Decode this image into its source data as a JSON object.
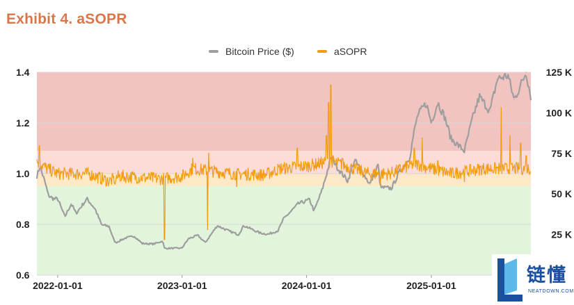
{
  "header": {
    "title": "Exhibit 4. aSOPR"
  },
  "colors": {
    "price": "#9e9e9e",
    "asopr": "#f39c12",
    "zone_high": "#f2c4c1",
    "zone_mid_upper": "#fbdcd6",
    "zone_mid_lower": "#fde9c8",
    "zone_low": "#e2f5dc",
    "title": "#d9774a"
  },
  "watermark": {
    "chinese_text": "链懂",
    "english_text": "NEATDOWN.COM"
  },
  "chart_data": {
    "type": "line",
    "title": "Exhibit 4. aSOPR",
    "xlabel": "",
    "ylabel": "",
    "legend_position": "top-center",
    "grid": true,
    "x_axis": {
      "type": "date",
      "range": [
        "2021-11-01",
        "2025-10-20"
      ],
      "ticks": [
        "2022-01-01",
        "2023-01-01",
        "2024-01-01",
        "2025-01-01"
      ]
    },
    "y_left": {
      "range": [
        0.6,
        1.4
      ],
      "ticks": [
        "0.6",
        "0.8",
        "1.0",
        "1.2",
        "1.4"
      ]
    },
    "y_right": {
      "range": [
        0,
        125000
      ],
      "ticks": [
        "25 K",
        "50 K",
        "75 K",
        "100 K",
        "125 K"
      ],
      "tick_values": [
        25000,
        50000,
        75000,
        100000,
        125000
      ]
    },
    "bands": [
      {
        "from": 1.09,
        "to": 1.4,
        "color_key": "zone_high"
      },
      {
        "from": 1.0,
        "to": 1.09,
        "color_key": "zone_mid_upper"
      },
      {
        "from": 0.95,
        "to": 1.0,
        "color_key": "zone_mid_lower"
      },
      {
        "from": 0.6,
        "to": 0.95,
        "color_key": "zone_low"
      }
    ],
    "series": [
      {
        "name": "Bitcoin Price ($)",
        "axis": "right",
        "color_key": "price",
        "points": [
          [
            "2021-11-01",
            61000
          ],
          [
            "2021-11-10",
            67000
          ],
          [
            "2021-11-25",
            57000
          ],
          [
            "2021-12-05",
            49000
          ],
          [
            "2021-12-20",
            47000
          ],
          [
            "2022-01-01",
            47000
          ],
          [
            "2022-01-22",
            36000
          ],
          [
            "2022-02-10",
            44000
          ],
          [
            "2022-02-24",
            38000
          ],
          [
            "2022-03-28",
            47000
          ],
          [
            "2022-04-20",
            41000
          ],
          [
            "2022-05-10",
            31000
          ],
          [
            "2022-06-01",
            30000
          ],
          [
            "2022-06-14",
            22000
          ],
          [
            "2022-06-20",
            20000
          ],
          [
            "2022-07-20",
            23000
          ],
          [
            "2022-08-14",
            24000
          ],
          [
            "2022-09-06",
            19500
          ],
          [
            "2022-10-10",
            19200
          ],
          [
            "2022-11-05",
            21000
          ],
          [
            "2022-11-10",
            16500
          ],
          [
            "2022-12-31",
            16600
          ],
          [
            "2023-01-20",
            22500
          ],
          [
            "2023-02-16",
            24500
          ],
          [
            "2023-03-10",
            20000
          ],
          [
            "2023-04-14",
            30500
          ],
          [
            "2023-05-20",
            27000
          ],
          [
            "2023-06-15",
            25000
          ],
          [
            "2023-07-01",
            30500
          ],
          [
            "2023-08-17",
            26000
          ],
          [
            "2023-09-11",
            25200
          ],
          [
            "2023-10-10",
            27500
          ],
          [
            "2023-10-25",
            34500
          ],
          [
            "2023-12-08",
            44000
          ],
          [
            "2024-01-10",
            46500
          ],
          [
            "2024-01-23",
            39500
          ],
          [
            "2024-02-15",
            52000
          ],
          [
            "2024-03-14",
            73000
          ],
          [
            "2024-04-01",
            66000
          ],
          [
            "2024-05-01",
            58000
          ],
          [
            "2024-05-21",
            71000
          ],
          [
            "2024-07-05",
            56000
          ],
          [
            "2024-07-29",
            68000
          ],
          [
            "2024-08-05",
            54000
          ],
          [
            "2024-09-06",
            53500
          ],
          [
            "2024-10-01",
            64000
          ],
          [
            "2024-10-29",
            72000
          ],
          [
            "2024-11-12",
            89000
          ],
          [
            "2024-11-22",
            98500
          ],
          [
            "2024-12-17",
            106000
          ],
          [
            "2025-01-01",
            94000
          ],
          [
            "2025-01-20",
            106500
          ],
          [
            "2025-02-10",
            97000
          ],
          [
            "2025-02-28",
            84000
          ],
          [
            "2025-04-08",
            76500
          ],
          [
            "2025-05-01",
            96000
          ],
          [
            "2025-05-22",
            110000
          ],
          [
            "2025-06-22",
            101000
          ],
          [
            "2025-07-14",
            121000
          ],
          [
            "2025-08-14",
            123000
          ],
          [
            "2025-09-01",
            108000
          ],
          [
            "2025-09-20",
            117000
          ],
          [
            "2025-10-06",
            125000
          ],
          [
            "2025-10-20",
            110000
          ]
        ]
      },
      {
        "name": "aSOPR",
        "axis": "left",
        "color_key": "asopr",
        "baseline_segments": [
          [
            "2021-11-01",
            1.05
          ],
          [
            "2021-12-01",
            1.02
          ],
          [
            "2022-01-01",
            1.0
          ],
          [
            "2022-04-01",
            1.0
          ],
          [
            "2022-06-01",
            0.97
          ],
          [
            "2022-07-01",
            0.99
          ],
          [
            "2022-11-01",
            0.98
          ],
          [
            "2023-01-01",
            0.99
          ],
          [
            "2023-02-01",
            1.02
          ],
          [
            "2023-06-01",
            1.0
          ],
          [
            "2023-09-01",
            0.995
          ],
          [
            "2023-10-15",
            1.02
          ],
          [
            "2024-01-01",
            1.03
          ],
          [
            "2024-03-15",
            1.05
          ],
          [
            "2024-07-01",
            1.0
          ],
          [
            "2024-09-01",
            1.0
          ],
          [
            "2024-11-15",
            1.04
          ],
          [
            "2025-01-01",
            1.02
          ],
          [
            "2025-03-01",
            1.0
          ],
          [
            "2025-06-01",
            1.02
          ],
          [
            "2025-10-20",
            1.02
          ]
        ],
        "spikes": [
          [
            "2021-11-08",
            1.11
          ],
          [
            "2022-06-18",
            0.96
          ],
          [
            "2022-07-18",
            0.98
          ],
          [
            "2022-11-10",
            0.74
          ],
          [
            "2023-02-01",
            1.06
          ],
          [
            "2023-03-17",
            0.78
          ],
          [
            "2023-03-20",
            1.08
          ],
          [
            "2023-06-10",
            0.95
          ],
          [
            "2023-12-05",
            1.1
          ],
          [
            "2024-02-28",
            1.15
          ],
          [
            "2024-03-06",
            1.28
          ],
          [
            "2024-03-12",
            1.35
          ],
          [
            "2024-04-15",
            1.06
          ],
          [
            "2024-08-05",
            0.96
          ],
          [
            "2024-11-12",
            1.1
          ],
          [
            "2024-12-05",
            1.14
          ],
          [
            "2025-01-20",
            1.05
          ],
          [
            "2025-04-08",
            0.97
          ],
          [
            "2025-07-25",
            1.26
          ],
          [
            "2025-08-20",
            1.15
          ],
          [
            "2025-09-20",
            1.12
          ],
          [
            "2025-10-06",
            1.07
          ]
        ]
      }
    ]
  }
}
